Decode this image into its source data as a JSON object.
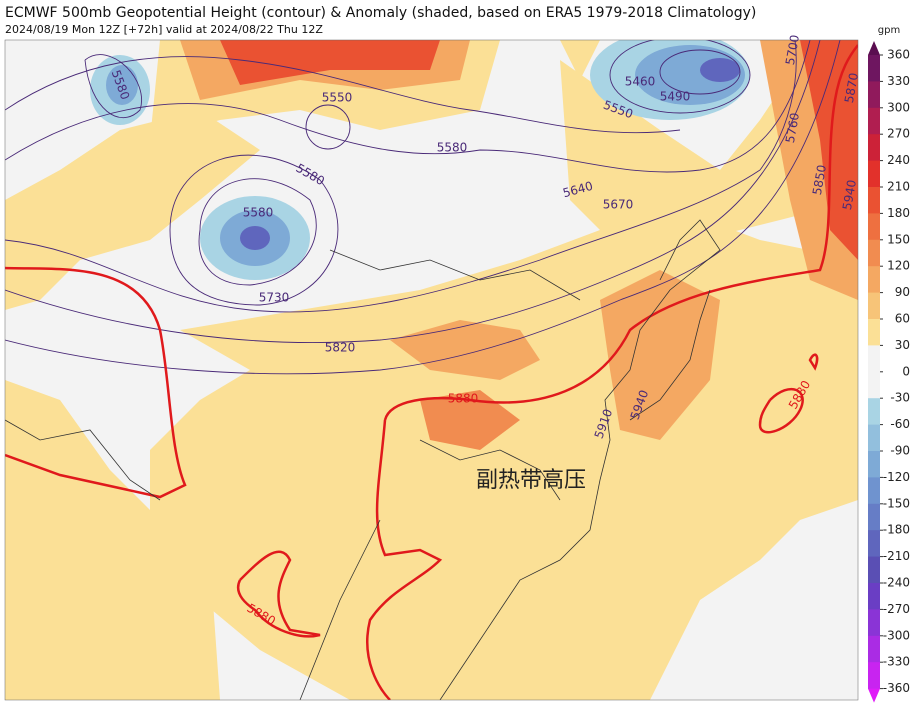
{
  "header": {
    "title": "ECMWF 500mb Geopotential Height (contour) & Anomaly (shaded, based on ERA5 1979-2018 Climatology)",
    "subtitle": "2024/08/19 Mon 12Z [+72h] valid at 2024/08/22 Thu 12Z"
  },
  "colorbar": {
    "unit": "gpm",
    "ticks": [
      360,
      330,
      300,
      270,
      240,
      210,
      180,
      150,
      120,
      90,
      60,
      30,
      0,
      -30,
      -60,
      -90,
      -120,
      -150,
      -180,
      -210,
      -240,
      -270,
      -300,
      -330,
      -360
    ],
    "colors": [
      "#6e1660",
      "#901a5c",
      "#b01e50",
      "#cc2238",
      "#e2312b",
      "#ea5232",
      "#ee7040",
      "#f18c50",
      "#f4a862",
      "#f7c478",
      "#fbe096",
      "#f3f3f3",
      "#f3f3f3",
      "#a9d4e4",
      "#92bfdd",
      "#7eaad6",
      "#6f93cf",
      "#667dc6",
      "#5f66bd",
      "#5a4fb4",
      "#6a3ec4",
      "#8a34d6",
      "#aa2ce4",
      "#c824f0"
    ],
    "over_color": "#5a0e50",
    "under_color": "#e01cf8"
  },
  "contours": {
    "labels": [
      5580,
      5550,
      5580,
      5580,
      5460,
      5490,
      5550,
      5580,
      5640,
      5670,
      5730,
      5820,
      5880,
      5910,
      5940,
      5880,
      5880,
      5700,
      5760,
      5850,
      5870,
      5940
    ],
    "highlight_value": 5880,
    "highlight_color": "#e0191c",
    "line_color": "#4a2a78"
  },
  "annotation": "副热带高压"
}
